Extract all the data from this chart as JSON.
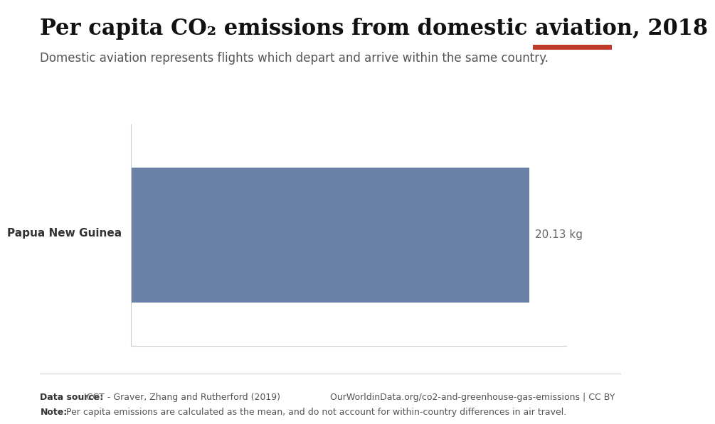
{
  "title": "Per capita CO₂ emissions from domestic aviation, 2018",
  "subtitle": "Domestic aviation represents flights which depart and arrive within the same country.",
  "country": "Papua New Guinea",
  "value": 20.13,
  "value_label": "20.13 kg",
  "bar_color": "#6b82a8",
  "background_color": "#ffffff",
  "xlim": [
    0,
    22
  ],
  "footer_left_bold": "Data source:",
  "footer_left": " ICCT - Graver, Zhang and Rutherford (2019)",
  "footer_right": "OurWorldinData.org/co2-and-greenhouse-gas-emissions | CC BY",
  "footer_note_bold": "Note:",
  "footer_note": " Per capita emissions are calculated as the mean, and do not account for within-country differences in air travel.",
  "owid_box_color": "#1a2e4a",
  "owid_red": "#c0392b",
  "title_fontsize": 22,
  "subtitle_fontsize": 12,
  "label_fontsize": 11,
  "footer_fontsize": 9
}
